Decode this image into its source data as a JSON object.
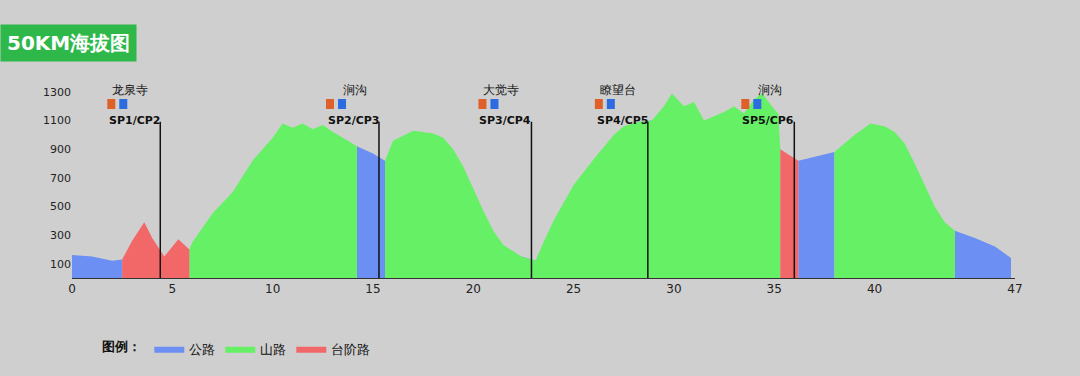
{
  "chart_data": {
    "type": "area",
    "title": "50KM海拔图",
    "x": [
      0,
      1,
      2,
      2.5,
      3,
      3.6,
      4,
      4.6,
      5.3,
      5.85,
      6,
      7,
      8,
      9,
      10,
      10.5,
      11,
      11.5,
      12,
      12.5,
      13,
      13.5,
      14.2,
      15,
      15.6,
      16,
      17,
      18,
      18.5,
      19,
      19.5,
      20,
      20.5,
      21,
      21.5,
      22.4,
      23.1,
      23.5,
      24,
      25,
      26,
      27,
      27.5,
      28.2,
      28.9,
      29.5,
      29.9,
      30.5,
      31,
      31.5,
      32,
      32.5,
      33,
      33.5,
      34,
      34.4,
      35,
      35.2,
      35.3,
      36.2,
      38,
      38.5,
      39,
      39.8,
      40.5,
      41,
      41.5,
      42,
      42.5,
      43,
      43.5,
      44,
      45,
      46,
      46.8
    ],
    "series": [
      {
        "name": "公路",
        "color": "#6b8ff2",
        "values": [
          160,
          150,
          120,
          130,
          null,
          null,
          null,
          null,
          null,
          null,
          null,
          null,
          null,
          null,
          null,
          null,
          null,
          null,
          null,
          null,
          null,
          null,
          920,
          870,
          820,
          null,
          null,
          null,
          null,
          null,
          null,
          null,
          null,
          null,
          null,
          150,
          120,
          null,
          null,
          null,
          null,
          null,
          null,
          1090,
          1100,
          null,
          null,
          null,
          null,
          null,
          null,
          null,
          null,
          null,
          null,
          null,
          null,
          null,
          null,
          820,
          880,
          null,
          null,
          null,
          null,
          null,
          null,
          null,
          null,
          null,
          null,
          330,
          280,
          220,
          140
        ]
      },
      {
        "name": "山路",
        "color": "#66f066",
        "values": [
          null,
          null,
          null,
          null,
          null,
          null,
          null,
          null,
          null,
          200,
          250,
          450,
          600,
          820,
          980,
          1080,
          1050,
          1080,
          1040,
          1070,
          1020,
          980,
          920,
          null,
          820,
          960,
          1030,
          1010,
          980,
          900,
          780,
          620,
          470,
          330,
          230,
          150,
          120,
          250,
          400,
          650,
          830,
          1000,
          1060,
          1090,
          1100,
          1200,
          1290,
          1200,
          1230,
          1100,
          1130,
          1160,
          1200,
          1150,
          1250,
          1290,
          1180,
          1150,
          900,
          null,
          880,
          940,
          1000,
          1080,
          1060,
          1020,
          940,
          800,
          650,
          500,
          390,
          330,
          null,
          null,
          null
        ]
      },
      {
        "name": "台阶路",
        "color": "#f26868",
        "values": [
          null,
          null,
          null,
          130,
          260,
          390,
          280,
          150,
          270,
          200,
          null,
          null,
          null,
          null,
          null,
          null,
          null,
          null,
          null,
          null,
          null,
          null,
          null,
          null,
          null,
          null,
          null,
          null,
          null,
          null,
          null,
          null,
          null,
          null,
          null,
          null,
          null,
          null,
          null,
          null,
          null,
          null,
          null,
          null,
          null,
          null,
          null,
          null,
          null,
          null,
          null,
          null,
          null,
          null,
          null,
          null,
          null,
          null,
          900,
          820,
          null,
          null,
          null,
          null,
          null,
          null,
          null,
          null,
          null,
          null,
          null,
          null,
          null,
          null,
          null
        ]
      }
    ],
    "xlim": [
      0,
      47
    ],
    "xticks": [
      0,
      5,
      10,
      15,
      20,
      25,
      30,
      35,
      40,
      47
    ],
    "ylim": [
      0,
      1300
    ],
    "yticks": [
      100,
      300,
      500,
      700,
      900,
      1100,
      1300
    ],
    "grid": false,
    "legend": "bottom left",
    "legend_title": "图例：",
    "checkpoints": [
      {
        "x": 4.4,
        "name": "龙泉寺",
        "label": "SP1/CP2"
      },
      {
        "x": 15.3,
        "name": "涧沟",
        "label": "SP2/CP3"
      },
      {
        "x": 22.9,
        "name": "大觉寺",
        "label": "SP3/CP4"
      },
      {
        "x": 28.7,
        "name": "瞭望台",
        "label": "SP4/CP5"
      },
      {
        "x": 36.0,
        "name": "涧沟",
        "label": "SP5/CP6"
      }
    ]
  }
}
